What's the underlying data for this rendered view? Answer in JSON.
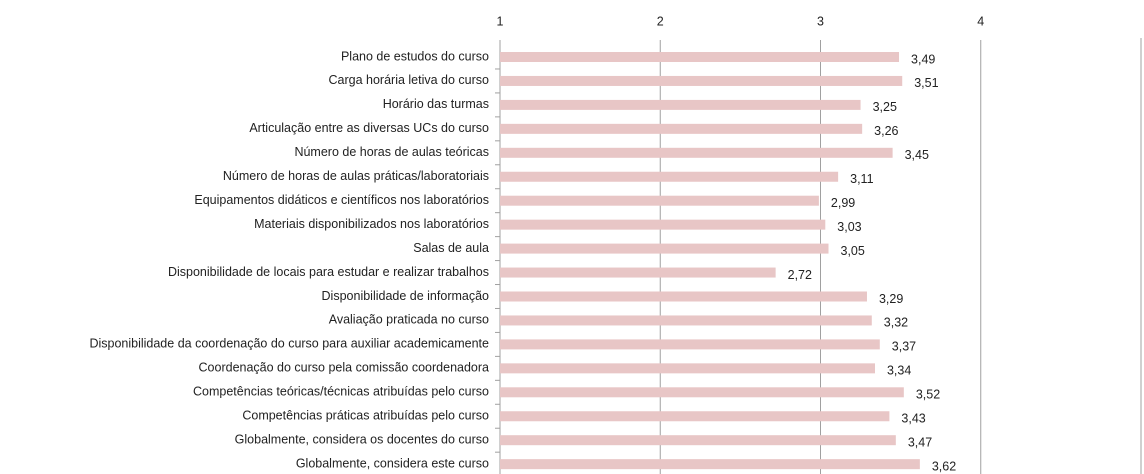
{
  "chart_data": {
    "type": "bar",
    "orientation": "horizontal",
    "categories": [
      "Plano de estudos do curso",
      "Carga horária letiva do curso",
      "Horário das turmas",
      "Articulação entre as diversas UCs do curso",
      "Número de horas de aulas teóricas",
      "Número de horas de aulas práticas/laboratoriais",
      "Equipamentos didáticos e científicos nos laboratórios",
      "Materiais disponibilizados nos laboratórios",
      "Salas de aula",
      "Disponibilidade de locais para estudar e realizar trabalhos",
      "Disponibilidade de informação",
      "Avaliação praticada no curso",
      "Disponibilidade da coordenação do curso para auxiliar academicamente",
      "Coordenação do curso pela comissão coordenadora",
      "Competências teóricas/técnicas atribuídas pelo curso",
      "Competências práticas atribuídas pelo curso",
      "Globalmente, considera os docentes do curso",
      "Globalmente, considera este curso"
    ],
    "values": [
      3.49,
      3.51,
      3.25,
      3.26,
      3.45,
      3.11,
      2.99,
      3.03,
      3.05,
      2.72,
      3.29,
      3.32,
      3.37,
      3.34,
      3.52,
      3.43,
      3.47,
      3.62
    ],
    "value_labels": [
      "3,49",
      "3,51",
      "3,25",
      "3,26",
      "3,45",
      "3,11",
      "2,99",
      "3,03",
      "3,05",
      "2,72",
      "3,29",
      "3,32",
      "3,37",
      "3,34",
      "3,52",
      "3,43",
      "3,47",
      "3,62"
    ],
    "color": "#e8c6c6",
    "xlim": [
      1,
      5
    ],
    "xticks": [
      1,
      2,
      3,
      4
    ],
    "grid": true
  }
}
